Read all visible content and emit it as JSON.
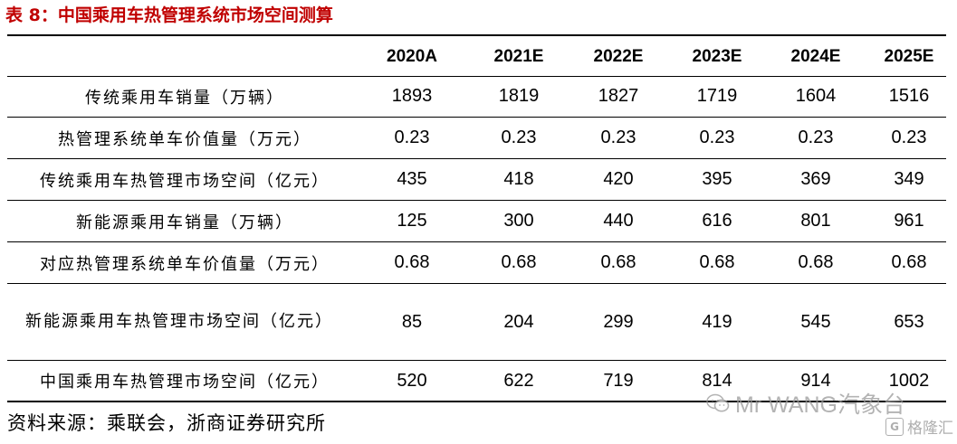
{
  "title": "表 8：中国乘用车热管理系统市场空间测算",
  "columns": [
    "2020A",
    "2021E",
    "2022E",
    "2023E",
    "2024E",
    "2025E"
  ],
  "rows": [
    {
      "label": "传统乘用车销量（万辆）",
      "values": [
        "1893",
        "1819",
        "1827",
        "1719",
        "1604",
        "1516"
      ]
    },
    {
      "label": "热管理系统单车价值量（万元）",
      "values": [
        "0.23",
        "0.23",
        "0.23",
        "0.23",
        "0.23",
        "0.23"
      ]
    },
    {
      "label": "传统乘用车热管理市场空间（亿元）",
      "values": [
        "435",
        "418",
        "420",
        "395",
        "369",
        "349"
      ]
    },
    {
      "label": "新能源乘用车销量（万辆）",
      "values": [
        "125",
        "300",
        "440",
        "616",
        "801",
        "961"
      ]
    },
    {
      "label": "对应热管理系统单车价值量（万元）",
      "values": [
        "0.68",
        "0.68",
        "0.68",
        "0.68",
        "0.68",
        "0.68"
      ]
    },
    {
      "label": "新能源乘用车热管理市场空间（亿元）",
      "values": [
        "85",
        "204",
        "299",
        "419",
        "545",
        "653"
      ]
    },
    {
      "label": "中国乘用车热管理市场空间（亿元）",
      "values": [
        "520",
        "622",
        "719",
        "814",
        "914",
        "1002"
      ]
    }
  ],
  "source": "资料来源：乘联会，浙商证券研究所",
  "watermark": "Mr WANG汽象台",
  "watermark2": "格隆汇",
  "colors": {
    "title": "#c00000",
    "rule": "#000000",
    "watermark": "#9a9a9a"
  }
}
